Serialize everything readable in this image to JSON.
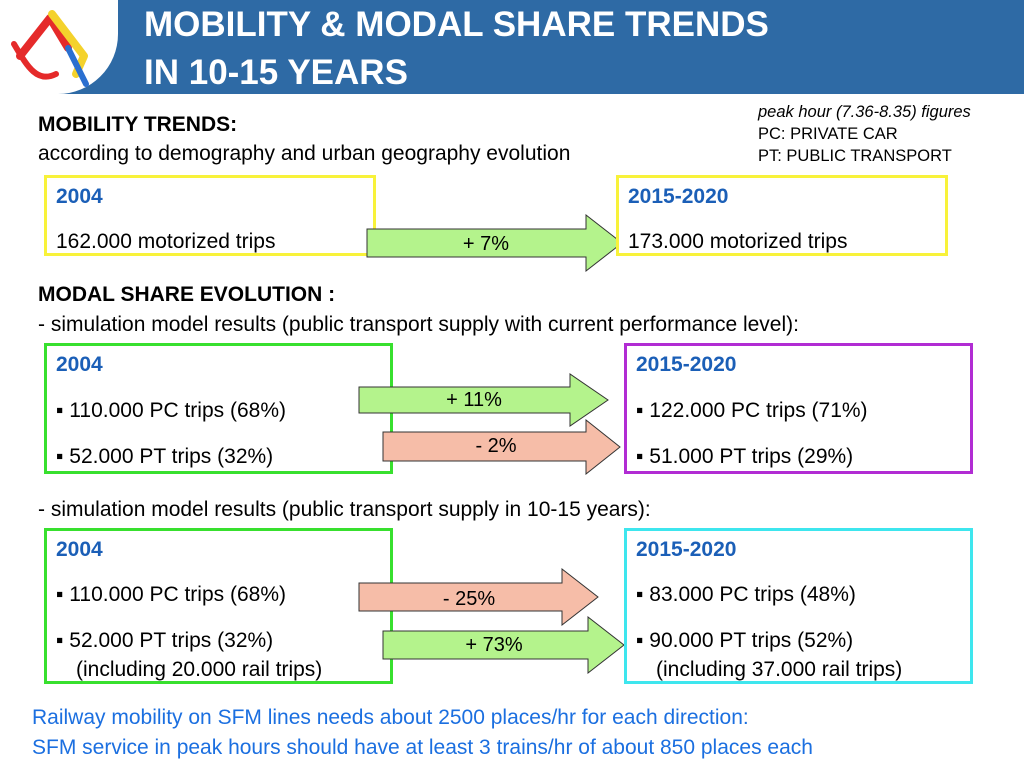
{
  "header": {
    "title_line1": "MOBILITY & MODAL SHARE TRENDS",
    "title_line2": "IN 10-15 YEARS",
    "logo": "stylised-shapes-logo"
  },
  "notes": {
    "line1": "peak hour (7.36-8.35) figures",
    "line2": "PC: PRIVATE CAR",
    "line3": "PT: PUBLIC TRANSPORT"
  },
  "mobility": {
    "heading": "MOBILITY TRENDS:",
    "subheading": "according to demography and urban geography evolution",
    "left_year": "2004",
    "left_value": "162.000 motorized trips",
    "arrow_label": "+ 7%",
    "right_year": "2015-2020",
    "right_value": "173.000 motorized trips"
  },
  "modal": {
    "heading": "MODAL SHARE EVOLUTION :",
    "subheading": "-  simulation model results (public transport supply with current performance level):",
    "left_year": "2004",
    "left_pc": "▪ 110.000 PC trips (68%)",
    "left_pt": "▪ 52.000 PT trips (32%)",
    "arrow_pc": "+ 11%",
    "arrow_pt": "- 2%",
    "right_year": "2015-2020",
    "right_pc": "▪ 122.000 PC trips (71%)",
    "right_pt": "▪ 51.000 PT trips (29%)"
  },
  "future": {
    "subheading": "-  simulation model results (public transport supply in 10-15 years):",
    "left_year": "2004",
    "left_pc": "▪ 110.000 PC trips (68%)",
    "left_pt": "▪ 52.000 PT trips (32%)",
    "left_rail": "(including 20.000 rail trips)",
    "arrow_pc": "- 25%",
    "arrow_pt": "+ 73%",
    "right_year": "2015-2020",
    "right_pc": "▪ 83.000 PC trips (48%)",
    "right_pt": "▪ 90.000 PT trips (52%)",
    "right_rail": "(including 37.000 rail trips)"
  },
  "footer": {
    "line1": "Railway mobility on SFM lines needs about 2500 places/hr for each direction:",
    "line2": "SFM service in peak hours should have at least 3 trains/hr of about 850 places each"
  },
  "colors": {
    "header": "#2e6aa5",
    "year_text": "#1b5fb7",
    "footer_text": "#1b6fe0",
    "box_yellow": "#f8f23a",
    "box_green": "#38e02e",
    "box_purple": "#b12cd3",
    "box_cyan": "#3ee6ee",
    "arrow_green": "#b4f38c",
    "arrow_salmon": "#f6bda8"
  }
}
